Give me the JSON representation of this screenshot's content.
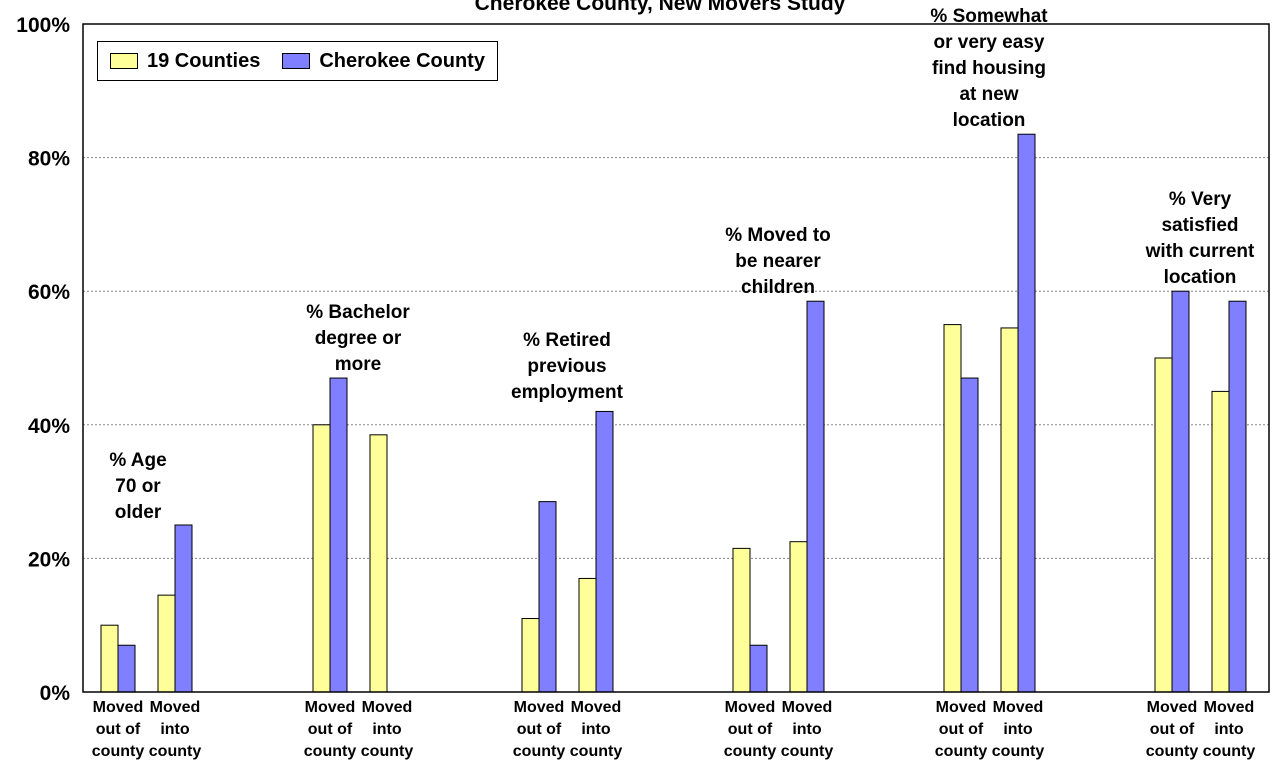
{
  "colors": {
    "counties19": "#FFFF99",
    "cherokee": "#7F7FFF",
    "gridline": "#888888"
  },
  "chart_data": {
    "type": "bar",
    "title": "Cherokee County, New Movers Study",
    "legend": {
      "position": "top-left",
      "entries": [
        "19 Counties",
        "Cherokee County"
      ]
    },
    "y_ticks": [
      "0%",
      "20%",
      "40%",
      "60%",
      "80%",
      "100%"
    ],
    "ylim": [
      0,
      100
    ],
    "grid": true,
    "subcategories": [
      "Moved out of county",
      "Moved into county"
    ],
    "groups": [
      {
        "label": [
          "% Age",
          "70 or",
          "older"
        ],
        "bars": [
          {
            "category": [
              "Moved",
              "out of",
              "county"
            ],
            "counties19": 10,
            "cherokee": 7
          },
          {
            "category": [
              "Moved",
              "into",
              "county"
            ],
            "counties19": 14.5,
            "cherokee": 25
          }
        ]
      },
      {
        "label": [
          "% Bachelor",
          "degree or",
          "more"
        ],
        "bars": [
          {
            "category": [
              "Moved",
              "out of",
              "county"
            ],
            "counties19": 40,
            "cherokee": 47
          },
          {
            "category": [
              "Moved",
              "into",
              "county"
            ],
            "counties19": 38.5,
            "cherokee": null
          }
        ]
      },
      {
        "label": [
          "% Retired",
          "previous",
          "employment"
        ],
        "bars": [
          {
            "category": [
              "Moved",
              "out of",
              "county"
            ],
            "counties19": 11,
            "cherokee": 28.5
          },
          {
            "category": [
              "Moved",
              "into",
              "county"
            ],
            "counties19": 17,
            "cherokee": 42
          }
        ]
      },
      {
        "label": [
          "% Moved to",
          "be nearer",
          "children"
        ],
        "bars": [
          {
            "category": [
              "Moved",
              "out of",
              "county"
            ],
            "counties19": 21.5,
            "cherokee": 7
          },
          {
            "category": [
              "Moved",
              "into",
              "county"
            ],
            "counties19": 22.5,
            "cherokee": 58.5
          }
        ]
      },
      {
        "label": [
          "% Somewhat",
          "or very easy",
          "find housing",
          "at new",
          "location"
        ],
        "bars": [
          {
            "category": [
              "Moved",
              "out of",
              "county"
            ],
            "counties19": 55,
            "cherokee": 47
          },
          {
            "category": [
              "Moved",
              "into",
              "county"
            ],
            "counties19": 54.5,
            "cherokee": 83.5
          }
        ]
      },
      {
        "label": [
          "% Very",
          "satisfied",
          "with current",
          "location"
        ],
        "bars": [
          {
            "category": [
              "Moved",
              "out of",
              "county"
            ],
            "counties19": 50,
            "cherokee": 60
          },
          {
            "category": [
              "Moved",
              "into",
              "county"
            ],
            "counties19": 45,
            "cherokee": 58.5
          }
        ]
      }
    ]
  }
}
